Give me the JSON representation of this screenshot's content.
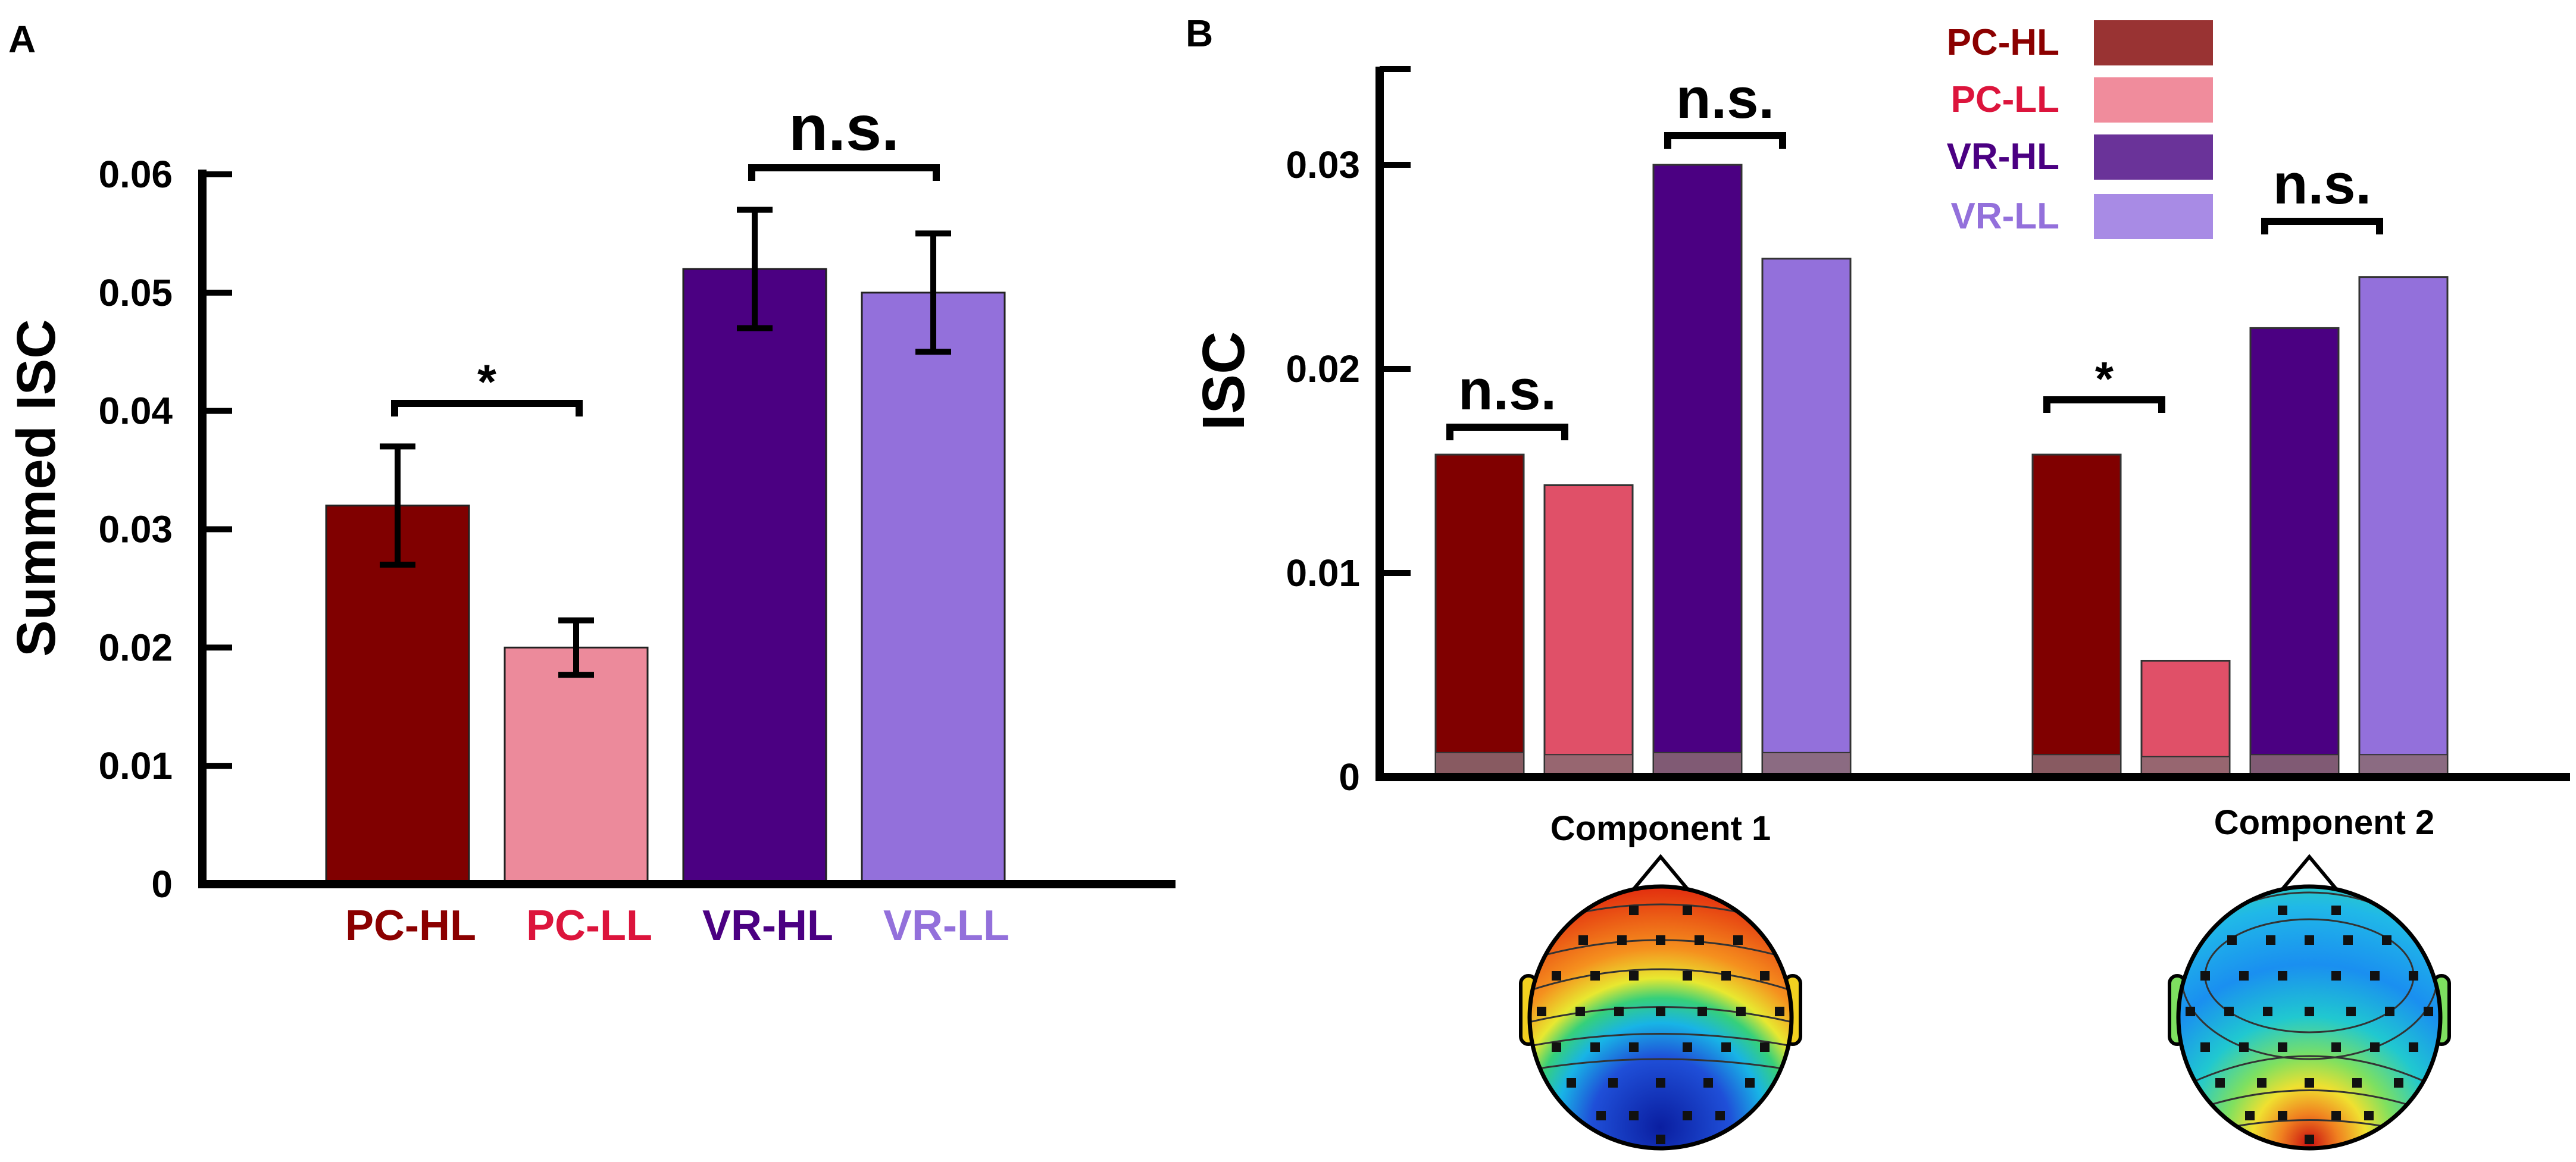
{
  "panel_a": {
    "label": "A",
    "chart_data": {
      "type": "bar",
      "title": "",
      "xlabel": "",
      "ylabel": "Summed ISC",
      "ylim": [
        0,
        0.06
      ],
      "yticks": [
        "0",
        "0.01",
        "0.02",
        "0.03",
        "0.04",
        "0.05",
        "0.06"
      ],
      "categories": [
        "PC-HL",
        "PC-LL",
        "VR-HL",
        "VR-LL"
      ],
      "values": [
        0.032,
        0.02,
        0.052,
        0.05
      ],
      "error": [
        0.005,
        0.0023,
        0.005,
        0.005
      ],
      "colors": [
        "#800000",
        "#ec8a9b",
        "#4b0082",
        "#9370db"
      ],
      "label_colors": [
        "#8b0000",
        "#dc143c",
        "#4b0082",
        "#9370db"
      ],
      "significance": [
        {
          "from": 0,
          "to": 1,
          "label": "*"
        },
        {
          "from": 2,
          "to": 3,
          "label": "n.s."
        }
      ]
    }
  },
  "panel_b": {
    "label": "B",
    "chart_data": {
      "type": "bar",
      "title": "",
      "xlabel": "",
      "ylabel": "ISC",
      "ylim": [
        0,
        0.035
      ],
      "yticks": [
        "0",
        "0.01",
        "0.02",
        "0.03"
      ],
      "groups": [
        "Component 1",
        "Component 2"
      ],
      "series": [
        {
          "name": "PC-HL",
          "values": [
            0.0158,
            0.0158
          ],
          "baseline": [
            0.0012,
            0.0011
          ],
          "color": "#800000",
          "legend_color": "#993333",
          "label_color": "#8b0000"
        },
        {
          "name": "PC-LL",
          "values": [
            0.0143,
            0.0057
          ],
          "baseline": [
            0.0011,
            0.001
          ],
          "color": "#e05068",
          "legend_color": "#f08c9c",
          "label_color": "#dc143c"
        },
        {
          "name": "VR-HL",
          "values": [
            0.03,
            0.022
          ],
          "baseline": [
            0.0012,
            0.0011
          ],
          "color": "#4b0082",
          "legend_color": "#6a3399",
          "label_color": "#4b0082"
        },
        {
          "name": "VR-LL",
          "values": [
            0.0254,
            0.0245
          ],
          "baseline": [
            0.0012,
            0.0011
          ],
          "color": "#9370db",
          "legend_color": "#a88be5",
          "label_color": "#9370db"
        }
      ],
      "significance": [
        {
          "group": 0,
          "from": 0,
          "to": 1,
          "label": "n.s."
        },
        {
          "group": 0,
          "from": 2,
          "to": 3,
          "label": "n.s."
        },
        {
          "group": 1,
          "from": 0,
          "to": 1,
          "label": "*"
        },
        {
          "group": 1,
          "from": 2,
          "to": 3,
          "label": "n.s."
        }
      ],
      "topomaps": [
        {
          "name": "Component 1",
          "pattern": "red-front-blue-back"
        },
        {
          "name": "Component 2",
          "pattern": "blue-center-red-back"
        }
      ]
    }
  }
}
